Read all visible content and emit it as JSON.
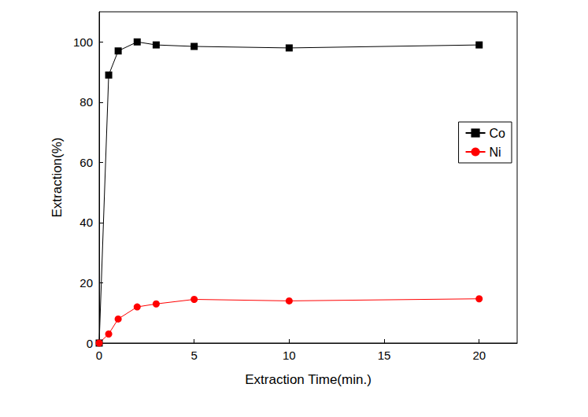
{
  "chart_data": {
    "type": "line",
    "x_label": "Extraction Time(min.)",
    "y_label": "Extraction(%)",
    "xlim": [
      0,
      22
    ],
    "xticks": [
      0,
      5,
      10,
      15,
      20
    ],
    "ylim": [
      0,
      110
    ],
    "yticks": [
      0,
      20,
      40,
      60,
      80,
      100
    ],
    "grid": false,
    "legend": "right",
    "x": [
      0,
      0.5,
      1,
      2,
      3,
      5,
      10,
      20
    ],
    "series": [
      {
        "name": "Co",
        "color": "#000000",
        "marker": "square",
        "values": [
          0,
          89,
          97,
          100,
          99,
          98.5,
          98,
          99
        ]
      },
      {
        "name": "Ni",
        "color": "#ff0000",
        "marker": "circle",
        "values": [
          0,
          3,
          8,
          12,
          13,
          14.5,
          14,
          14.7
        ]
      }
    ]
  }
}
